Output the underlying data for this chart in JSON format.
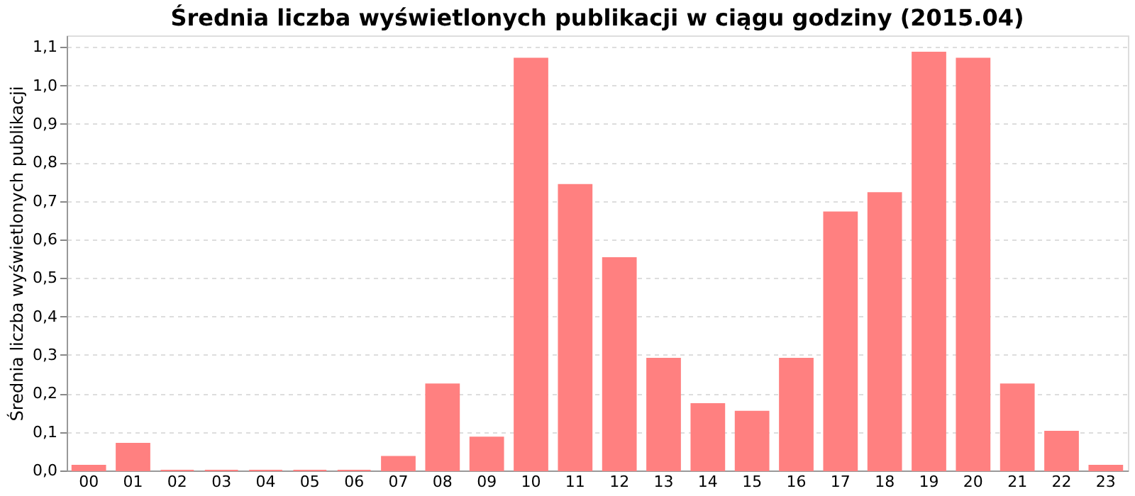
{
  "chart_data": {
    "type": "bar",
    "title": "Średnia liczba wyświetlonych publikacji w ciągu godziny (2015.04)",
    "ylabel": "Średnia liczba wyświetlonych publikacji",
    "categories": [
      "00",
      "01",
      "02",
      "03",
      "04",
      "05",
      "06",
      "07",
      "08",
      "09",
      "10",
      "11",
      "12",
      "13",
      "14",
      "15",
      "16",
      "17",
      "18",
      "19",
      "20",
      "21",
      "22",
      "23"
    ],
    "values": [
      0.013,
      0.07,
      0,
      0,
      0,
      0,
      0,
      0.036,
      0.224,
      0.086,
      1.07,
      0.742,
      0.552,
      0.291,
      0.173,
      0.153,
      0.291,
      0.671,
      0.721,
      1.086,
      1.07,
      0.224,
      0.101,
      0.013
    ],
    "color": "#ff8080",
    "ylim": [
      0,
      1.13
    ],
    "yticks": [
      {
        "value": 0,
        "label": "0,0"
      },
      {
        "value": 0.1,
        "label": "0,1"
      },
      {
        "value": 0.2,
        "label": "0,2"
      },
      {
        "value": 0.3,
        "label": "0,3"
      },
      {
        "value": 0.4,
        "label": "0,4"
      },
      {
        "value": 0.5,
        "label": "0,5"
      },
      {
        "value": 0.6,
        "label": "0,6"
      },
      {
        "value": 0.7,
        "label": "0,7"
      },
      {
        "value": 0.8,
        "label": "0,8"
      },
      {
        "value": 0.9,
        "label": "0,9"
      },
      {
        "value": 1.0,
        "label": "1,0"
      },
      {
        "value": 1.1,
        "label": "1,1"
      }
    ],
    "grid": "y"
  }
}
